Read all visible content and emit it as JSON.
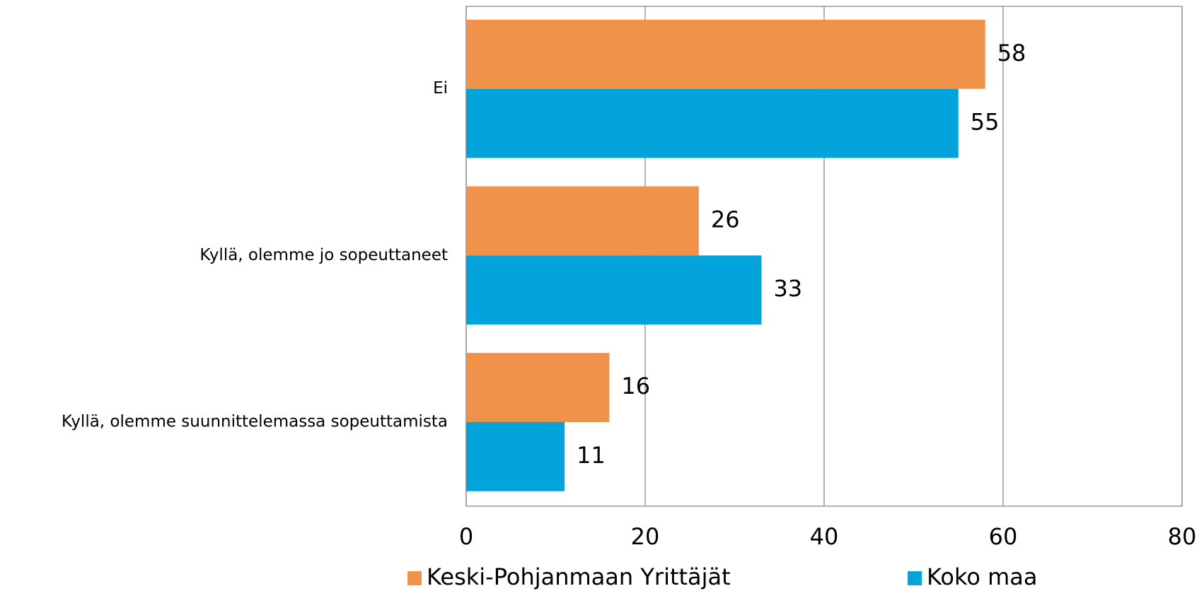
{
  "chart_data": {
    "type": "barh",
    "categories": [
      "Ei",
      "Kyllä, olemme jo sopeuttaneet",
      "Kyllä, olemme suunnittelemassa sopeuttamista"
    ],
    "series": [
      {
        "name": "Keski-Pohjanmaan Yrittäjät",
        "color": "#f0924a",
        "values": [
          58,
          26,
          16
        ]
      },
      {
        "name": "Koko maa",
        "color": "#03a4db",
        "values": [
          55,
          33,
          11
        ]
      }
    ],
    "xlim": [
      0,
      80
    ],
    "xticks": [
      0,
      20,
      40,
      60,
      80
    ],
    "grid": true,
    "legend": "bottom"
  }
}
